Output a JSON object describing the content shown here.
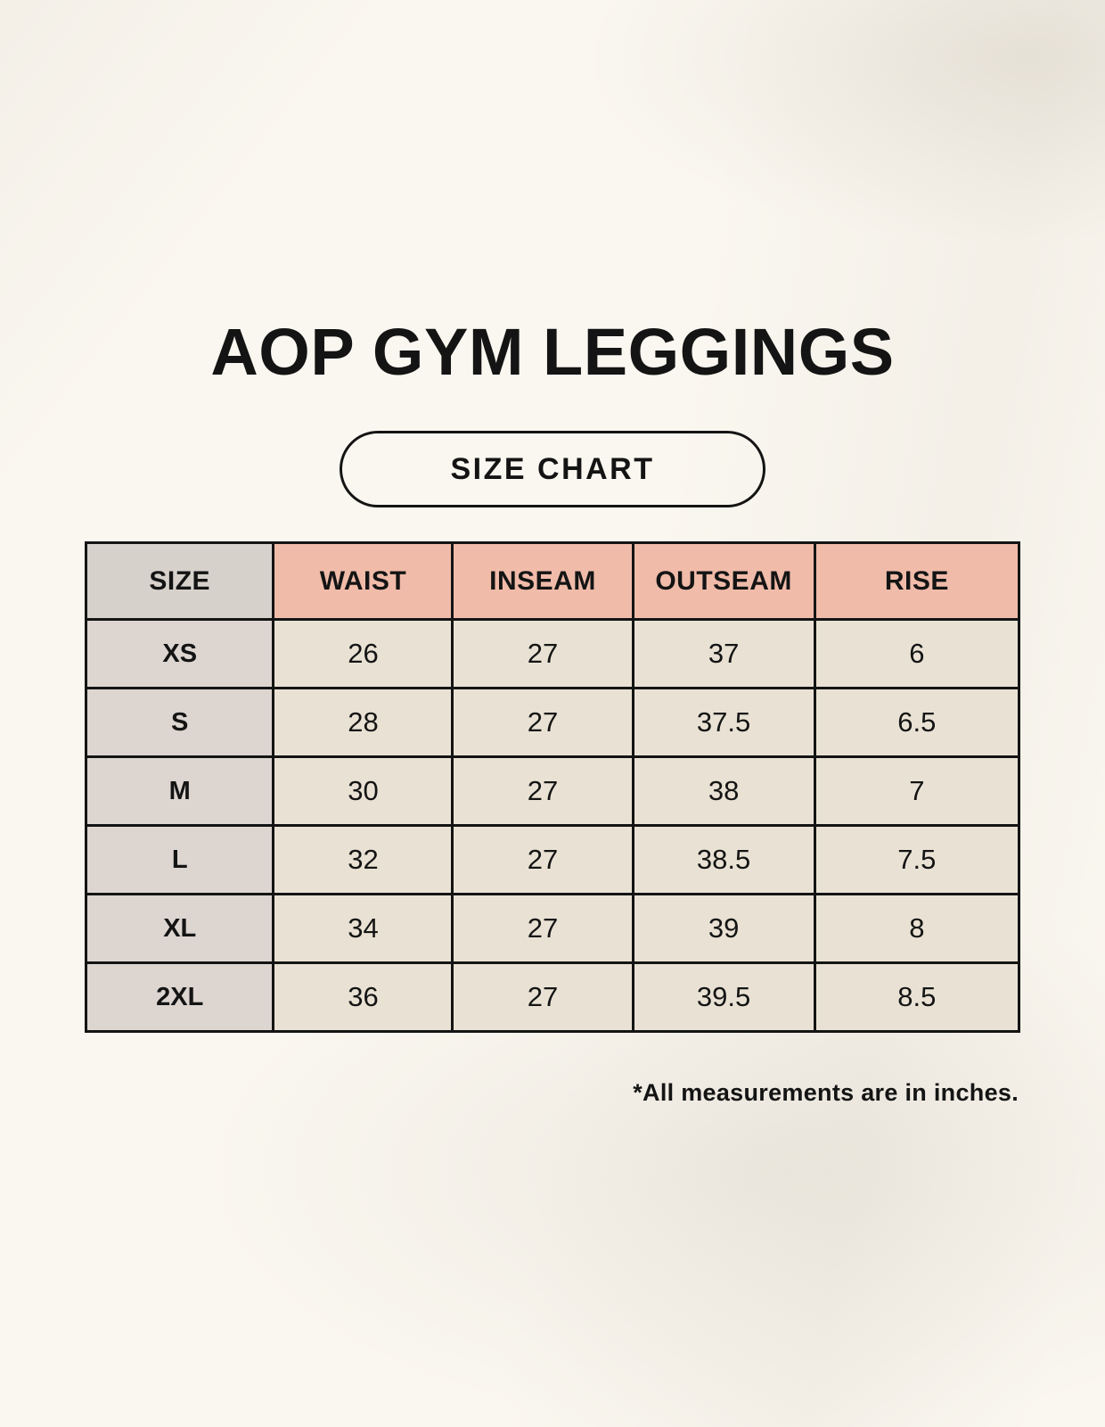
{
  "page": {
    "title": "AOP GYM LEGGINGS",
    "badge_label": "SIZE CHART",
    "footnote": "*All measurements are in inches."
  },
  "chart_data": {
    "type": "table",
    "title": "AOP GYM LEGGINGS",
    "subtitle": "SIZE CHART",
    "columns": [
      "SIZE",
      "WAIST",
      "INSEAM",
      "OUTSEAM",
      "RISE"
    ],
    "rows": [
      [
        "XS",
        "26",
        "27",
        "37",
        "6"
      ],
      [
        "S",
        "28",
        "27",
        "37.5",
        "6.5"
      ],
      [
        "M",
        "30",
        "27",
        "38",
        "7"
      ],
      [
        "L",
        "32",
        "27",
        "38.5",
        "7.5"
      ],
      [
        "XL",
        "34",
        "27",
        "39",
        "8"
      ],
      [
        "2XL",
        "36",
        "27",
        "39.5",
        "8.5"
      ]
    ],
    "units": "inches",
    "note": "*All measurements are in inches."
  },
  "colors": {
    "bg": "#faf7f0",
    "header_pink": "#f0bba9",
    "header_gray": "#d7d1cc",
    "row_label_gray": "#dcd5d0",
    "cell_cream": "#e9e2d4",
    "border": "#141414",
    "text": "#141414"
  }
}
